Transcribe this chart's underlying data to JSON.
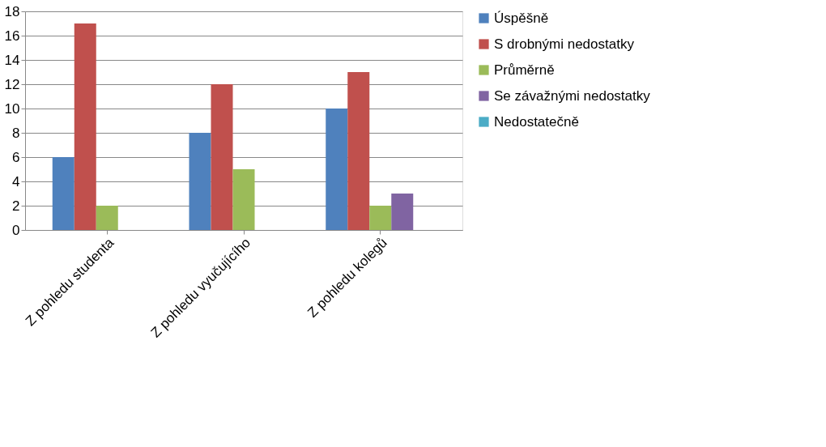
{
  "chart_data": {
    "type": "bar",
    "categories": [
      "Z pohledu studenta",
      "Z pohledu vyučujícího",
      "Z pohledu kolegů"
    ],
    "series": [
      {
        "name": "Úspěšně",
        "color": "#4f81bd",
        "values": [
          6,
          8,
          10
        ]
      },
      {
        "name": "S drobnými nedostatky",
        "color": "#c0504d",
        "values": [
          17,
          12,
          13
        ]
      },
      {
        "name": "Průměrně",
        "color": "#9bbb59",
        "values": [
          2,
          5,
          2
        ]
      },
      {
        "name": "Se závažnými nedostatky",
        "color": "#8064a2",
        "values": [
          0,
          0,
          3
        ]
      },
      {
        "name": "Nedostatečně",
        "color": "#4bacc6",
        "values": [
          0,
          0,
          0
        ]
      }
    ],
    "ylim": [
      0,
      18
    ],
    "yticks": [
      0,
      2,
      4,
      6,
      8,
      10,
      12,
      14,
      16,
      18
    ],
    "grid": "y",
    "legend": "right"
  }
}
